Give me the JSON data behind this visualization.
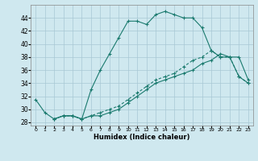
{
  "xlabel": "Humidex (Indice chaleur)",
  "ylabel": "",
  "bg_color": "#cfe8ef",
  "grid_color": "#a8c8d4",
  "line_color": "#1a7a6e",
  "xlim": [
    -0.5,
    23.5
  ],
  "ylim": [
    27.5,
    46
  ],
  "yticks": [
    28,
    30,
    32,
    34,
    36,
    38,
    40,
    42,
    44
  ],
  "xticks": [
    0,
    1,
    2,
    3,
    4,
    5,
    6,
    7,
    8,
    9,
    10,
    11,
    12,
    13,
    14,
    15,
    16,
    17,
    18,
    19,
    20,
    21,
    22,
    23
  ],
  "line1_x": [
    0,
    1,
    2,
    3,
    4,
    5,
    6,
    7,
    8,
    9,
    10,
    11,
    12,
    13,
    14,
    15,
    16,
    17,
    18,
    19,
    20,
    21,
    22,
    23
  ],
  "line1_y": [
    31.5,
    29.5,
    28.5,
    29.0,
    29.0,
    28.5,
    33.0,
    36.0,
    38.5,
    41.0,
    43.5,
    43.5,
    43.0,
    44.5,
    45.0,
    44.5,
    44.0,
    44.0,
    42.5,
    39.0,
    38.0,
    38.0,
    35.0,
    34.0
  ],
  "line2_x": [
    2,
    3,
    4,
    5,
    6,
    7,
    8,
    9,
    10,
    11,
    12,
    13,
    14,
    15,
    16,
    17,
    18,
    19,
    20,
    21,
    22,
    23
  ],
  "line2_y": [
    28.5,
    29.0,
    29.0,
    28.5,
    29.0,
    29.0,
    29.5,
    30.0,
    31.0,
    32.0,
    33.0,
    34.0,
    34.5,
    35.0,
    35.5,
    36.0,
    37.0,
    37.5,
    38.5,
    38.0,
    38.0,
    34.5
  ],
  "line3_x": [
    2,
    3,
    4,
    5,
    6,
    7,
    8,
    9,
    10,
    11,
    12,
    13,
    14,
    15,
    16,
    17,
    18,
    19,
    20,
    21,
    22,
    23
  ],
  "line3_y": [
    28.5,
    29.0,
    29.0,
    28.5,
    29.0,
    29.5,
    30.0,
    30.5,
    31.5,
    32.5,
    33.5,
    34.5,
    35.0,
    35.5,
    36.5,
    37.5,
    38.0,
    39.0,
    38.0,
    38.0,
    35.0,
    34.0
  ]
}
